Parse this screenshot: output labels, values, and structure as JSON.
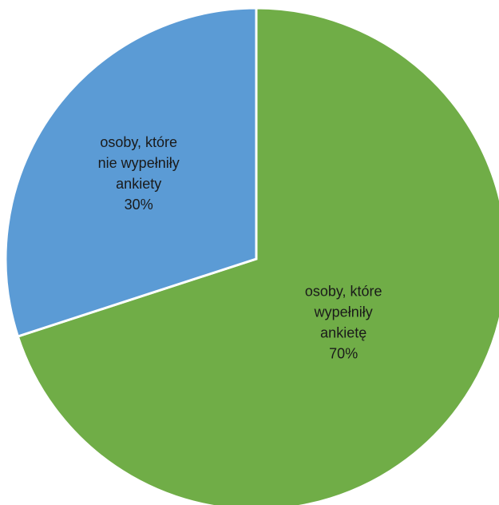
{
  "chart_data": {
    "type": "pie",
    "title": "",
    "start_angle_deg": 0,
    "direction": "clockwise",
    "slices": [
      {
        "label_lines": [
          "osoby, które",
          "wypełniły",
          "ankietę"
        ],
        "value": 70,
        "value_label": "70%",
        "color": "#70AD47"
      },
      {
        "label_lines": [
          "osoby, które",
          "nie wypełniły",
          "ankiety"
        ],
        "value": 30,
        "value_label": "30%",
        "color": "#5B9BD5"
      }
    ],
    "legend": "none"
  }
}
